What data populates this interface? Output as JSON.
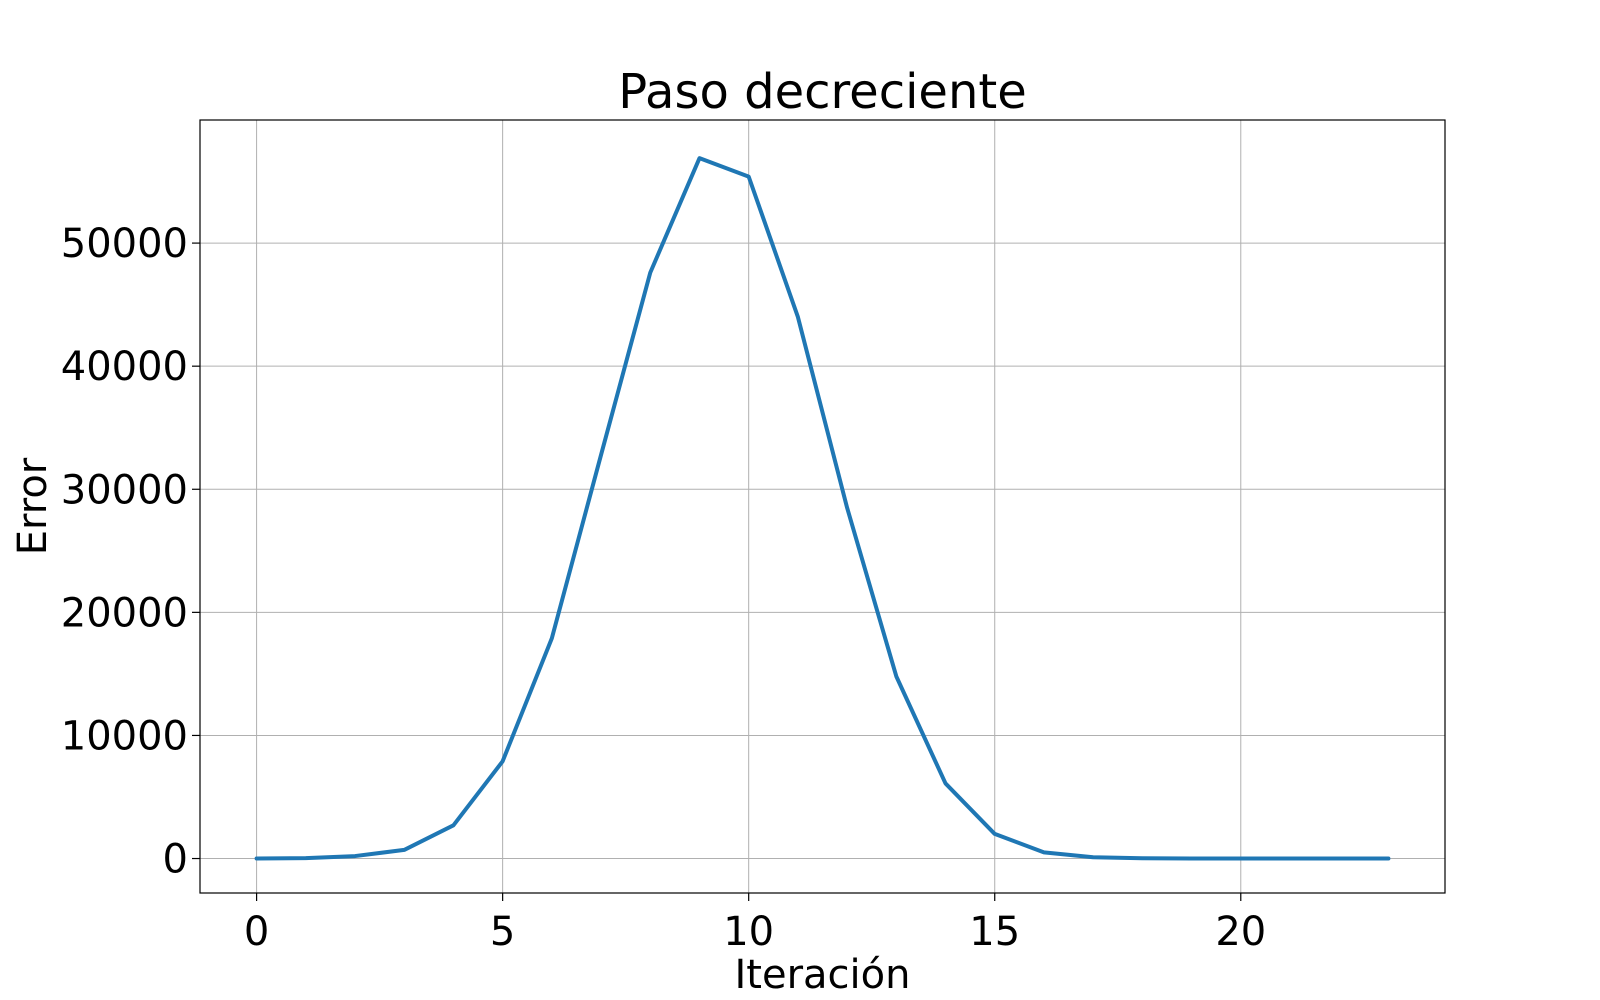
{
  "chart_data": {
    "type": "line",
    "title": "Paso decreciente",
    "xlabel": "Iteración",
    "ylabel": "Error",
    "xlim": [
      -1.15,
      24.15
    ],
    "ylim": [
      -2800,
      60000
    ],
    "xticks": [
      0,
      5,
      10,
      15,
      20
    ],
    "yticks": [
      0,
      10000,
      20000,
      30000,
      40000,
      50000
    ],
    "grid": true,
    "legend": "none",
    "series": [
      {
        "color": "#1f77b4",
        "x": [
          0,
          1,
          2,
          3,
          4,
          5,
          6,
          7,
          8,
          9,
          10,
          11,
          12,
          13,
          14,
          15,
          16,
          17,
          18,
          19,
          20,
          21,
          22,
          23
        ],
        "y": [
          0,
          30,
          200,
          700,
          2700,
          7900,
          17900,
          32800,
          47600,
          56900,
          55400,
          44000,
          28500,
          14800,
          6100,
          2000,
          500,
          100,
          20,
          5,
          0,
          0,
          0,
          0
        ]
      }
    ]
  }
}
